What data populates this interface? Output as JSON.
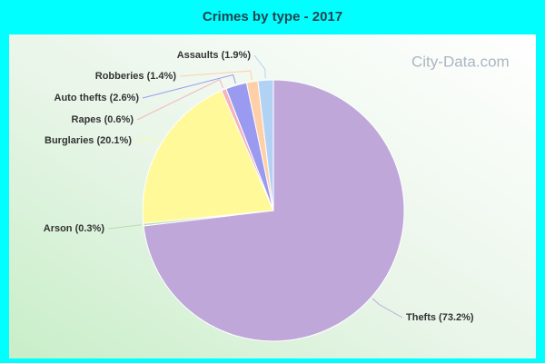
{
  "chart_data": {
    "type": "pie",
    "title": "Crimes by type - 2017",
    "values": [
      73.2,
      0.3,
      20.1,
      0.6,
      2.6,
      1.4,
      1.9
    ],
    "value_labels": [
      "Thefts (73.2%)",
      "Arson (0.3%)",
      "Burglaries (20.1%)",
      "Rapes (0.6%)",
      "Auto thefts (2.6%)",
      "Robberies (1.4%)",
      "Assaults (1.9%)"
    ],
    "colors": [
      "#bfa8d9",
      "#b8dcb0",
      "#fff99a",
      "#f4b4bc",
      "#9a9af0",
      "#ffd0a8",
      "#b2d2f4"
    ],
    "watermark": "City-Data.com"
  }
}
